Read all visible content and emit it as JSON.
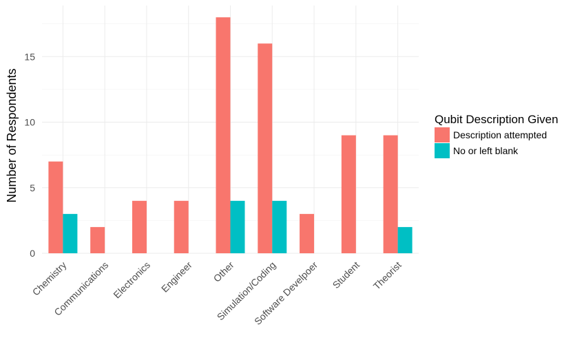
{
  "chart_data": {
    "type": "bar",
    "categories": [
      "Chemistry",
      "Communications",
      "Electronics",
      "Engineer",
      "Other",
      "Simulation/Coding",
      "Software Develpoer",
      "Student",
      "Theorist"
    ],
    "series": [
      {
        "name": "Description attempted",
        "values": [
          7,
          2,
          4,
          4,
          18,
          16,
          3,
          9,
          9
        ],
        "color": "#F8766D"
      },
      {
        "name": "No or left blank",
        "values": [
          3,
          0,
          0,
          0,
          4,
          4,
          0,
          0,
          2
        ],
        "color": "#00BFC4"
      }
    ],
    "ylabel": "Number of Respondents",
    "xlabel": "",
    "ylim": [
      0,
      18.9
    ],
    "yticks": [
      0,
      5,
      10,
      15
    ],
    "grid": true,
    "legend": {
      "title": "Qubit Description Given",
      "position": "right"
    }
  }
}
